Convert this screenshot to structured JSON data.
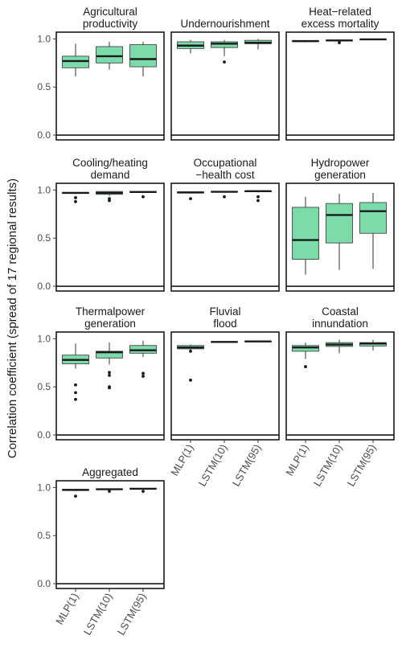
{
  "chart_data": {
    "type": "box",
    "ylabel": "Correlation coefficient (spread of 17 regional results)",
    "xlabel": "",
    "categories": [
      "MLP(1)",
      "LSTM(10)",
      "LSTM(95)"
    ],
    "yticks": [
      0.0,
      0.5,
      1.0
    ],
    "ytick_labels": [
      "0.0",
      "0.5",
      "1.0"
    ],
    "ylim": [
      -0.05,
      1.07
    ],
    "colors": {
      "box_fill": "#7bdcaa",
      "box_stroke": "#333333",
      "panel_border": "#1a1a1a",
      "zero_line": "#1a1a1a"
    },
    "panels": [
      {
        "title": [
          "Agricultural",
          "productivity"
        ],
        "boxes": [
          {
            "lo": 0.61,
            "q1": 0.7,
            "med": 0.77,
            "q3": 0.82,
            "hi": 0.95,
            "out": []
          },
          {
            "lo": 0.68,
            "q1": 0.75,
            "med": 0.82,
            "q3": 0.92,
            "hi": 0.97,
            "out": []
          },
          {
            "lo": 0.61,
            "q1": 0.71,
            "med": 0.79,
            "q3": 0.94,
            "hi": 0.97,
            "out": []
          }
        ]
      },
      {
        "title": [
          "Undernourishment"
        ],
        "boxes": [
          {
            "lo": 0.85,
            "q1": 0.9,
            "med": 0.93,
            "q3": 0.97,
            "hi": 0.99,
            "out": []
          },
          {
            "lo": 0.82,
            "q1": 0.91,
            "med": 0.95,
            "q3": 0.97,
            "hi": 0.99,
            "out": [
              0.76
            ]
          },
          {
            "lo": 0.89,
            "q1": 0.95,
            "med": 0.96,
            "q3": 0.985,
            "hi": 1.0,
            "out": []
          }
        ]
      },
      {
        "title": [
          "Heat−related",
          "excess mortality"
        ],
        "boxes": [
          {
            "lo": 0.965,
            "q1": 0.972,
            "med": 0.977,
            "q3": 0.981,
            "hi": 0.985,
            "out": []
          },
          {
            "lo": 0.975,
            "q1": 0.98,
            "med": 0.984,
            "q3": 0.988,
            "hi": 0.992,
            "out": [
              0.96
            ]
          },
          {
            "lo": 0.99,
            "q1": 0.993,
            "med": 0.995,
            "q3": 0.997,
            "hi": 0.999,
            "out": []
          }
        ]
      },
      {
        "title": [
          "Cooling/heating",
          "demand"
        ],
        "boxes": [
          {
            "lo": 0.96,
            "q1": 0.965,
            "med": 0.97,
            "q3": 0.975,
            "hi": 0.98,
            "out": [
              0.92,
              0.88
            ]
          },
          {
            "lo": 0.94,
            "q1": 0.955,
            "med": 0.97,
            "q3": 0.985,
            "hi": 0.99,
            "out": [
              0.91,
              0.89
            ]
          },
          {
            "lo": 0.97,
            "q1": 0.975,
            "med": 0.98,
            "q3": 0.985,
            "hi": 0.99,
            "out": [
              0.93
            ]
          }
        ]
      },
      {
        "title": [
          "Occupational",
          "−health cost"
        ],
        "boxes": [
          {
            "lo": 0.965,
            "q1": 0.97,
            "med": 0.975,
            "q3": 0.98,
            "hi": 0.985,
            "out": [
              0.91
            ]
          },
          {
            "lo": 0.975,
            "q1": 0.978,
            "med": 0.982,
            "q3": 0.986,
            "hi": 0.99,
            "out": [
              0.93
            ]
          },
          {
            "lo": 0.975,
            "q1": 0.982,
            "med": 0.988,
            "q3": 0.992,
            "hi": 0.996,
            "out": [
              0.93,
              0.89
            ]
          }
        ]
      },
      {
        "title": [
          "Hydropower",
          "generation"
        ],
        "boxes": [
          {
            "lo": 0.12,
            "q1": 0.28,
            "med": 0.48,
            "q3": 0.82,
            "hi": 0.93,
            "out": []
          },
          {
            "lo": 0.17,
            "q1": 0.45,
            "med": 0.74,
            "q3": 0.86,
            "hi": 0.96,
            "out": []
          },
          {
            "lo": 0.18,
            "q1": 0.55,
            "med": 0.78,
            "q3": 0.87,
            "hi": 0.97,
            "out": []
          }
        ]
      },
      {
        "title": [
          "Thermalpower",
          "generation"
        ],
        "boxes": [
          {
            "lo": 0.69,
            "q1": 0.74,
            "med": 0.78,
            "q3": 0.83,
            "hi": 0.95,
            "out": [
              0.52,
              0.44,
              0.37
            ]
          },
          {
            "lo": 0.73,
            "q1": 0.8,
            "med": 0.86,
            "q3": 0.87,
            "hi": 0.96,
            "out": [
              0.65,
              0.62,
              0.5,
              0.49
            ]
          },
          {
            "lo": 0.81,
            "q1": 0.85,
            "med": 0.88,
            "q3": 0.93,
            "hi": 0.98,
            "out": [
              0.64,
              0.61
            ]
          }
        ]
      },
      {
        "title": [
          "Fluvial",
          "flood"
        ],
        "boxes": [
          {
            "lo": 0.86,
            "q1": 0.895,
            "med": 0.91,
            "q3": 0.93,
            "hi": 0.94,
            "out": [
              0.87,
              0.57
            ]
          },
          {
            "lo": 0.96,
            "q1": 0.963,
            "med": 0.967,
            "q3": 0.97,
            "hi": 0.975,
            "out": []
          },
          {
            "lo": 0.965,
            "q1": 0.968,
            "med": 0.972,
            "q3": 0.975,
            "hi": 0.98,
            "out": []
          }
        ]
      },
      {
        "title": [
          "Coastal",
          "innundation"
        ],
        "boxes": [
          {
            "lo": 0.79,
            "q1": 0.87,
            "med": 0.91,
            "q3": 0.93,
            "hi": 0.96,
            "out": [
              0.71
            ]
          },
          {
            "lo": 0.85,
            "q1": 0.92,
            "med": 0.94,
            "q3": 0.96,
            "hi": 0.99,
            "out": []
          },
          {
            "lo": 0.88,
            "q1": 0.925,
            "med": 0.95,
            "q3": 0.96,
            "hi": 0.99,
            "out": []
          }
        ]
      },
      {
        "title": [
          "Aggregated"
        ],
        "boxes": [
          {
            "lo": 0.965,
            "q1": 0.97,
            "med": 0.975,
            "q3": 0.98,
            "hi": 0.985,
            "out": [
              0.91
            ]
          },
          {
            "lo": 0.975,
            "q1": 0.978,
            "med": 0.982,
            "q3": 0.986,
            "hi": 0.99,
            "out": [
              0.96
            ]
          },
          {
            "lo": 0.98,
            "q1": 0.983,
            "med": 0.987,
            "q3": 0.991,
            "hi": 0.995,
            "out": [
              0.96
            ]
          }
        ]
      }
    ]
  }
}
